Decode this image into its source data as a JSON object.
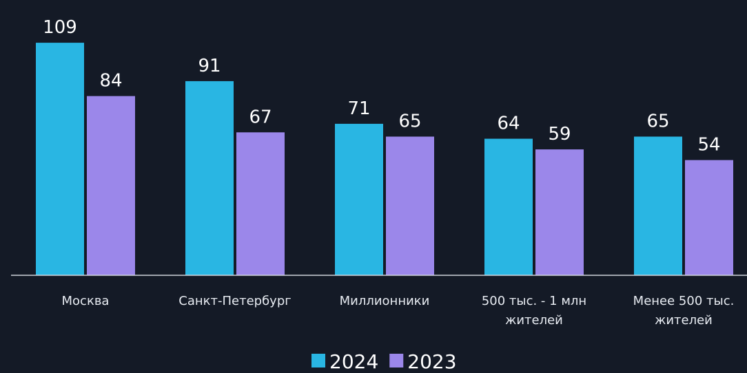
{
  "chart_data": {
    "type": "bar",
    "categories": [
      "Москва",
      "Санкт-Петербург",
      "Миллионники",
      "500 тыс. - 1 млн\nжителей",
      "Менее 500 тыс.\nжителей"
    ],
    "series": [
      {
        "name": "2024",
        "color": "#29b6e3",
        "values": [
          109,
          91,
          71,
          64,
          65
        ]
      },
      {
        "name": "2023",
        "color": "#9b87ea",
        "values": [
          84,
          67,
          65,
          59,
          54
        ]
      }
    ],
    "ylim": [
      0,
      120
    ]
  }
}
